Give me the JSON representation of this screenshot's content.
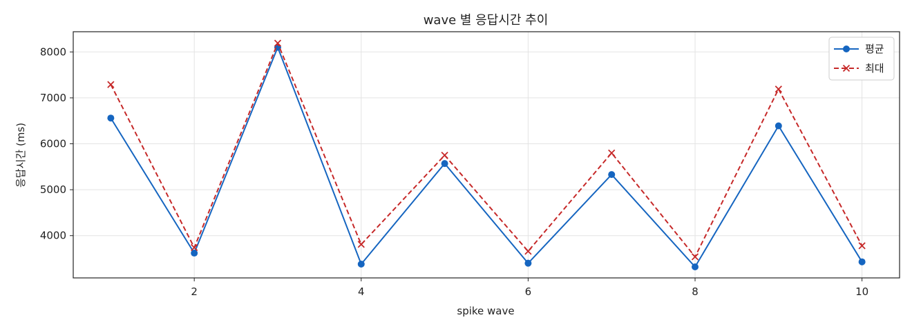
{
  "chart_data": {
    "type": "line",
    "title": "wave 별 응답시간 추이",
    "xlabel": "spike wave",
    "ylabel": "응답시간 (ms)",
    "x": [
      1,
      2,
      3,
      4,
      5,
      6,
      7,
      8,
      9,
      10
    ],
    "xlim": [
      0.55,
      10.45
    ],
    "ylim": [
      3080,
      8440
    ],
    "xticks": [
      2,
      4,
      6,
      8,
      10
    ],
    "yticks": [
      4000,
      5000,
      6000,
      7000,
      8000
    ],
    "grid": true,
    "legend_position": "top-right",
    "series": [
      {
        "name": "평균",
        "values": [
          6560,
          3620,
          8100,
          3380,
          5570,
          3400,
          5330,
          3320,
          6390,
          3430
        ],
        "color": "#1565c0",
        "line_style": "solid",
        "marker": "circle"
      },
      {
        "name": "최대",
        "values": [
          7290,
          3740,
          8190,
          3810,
          5750,
          3660,
          5800,
          3540,
          7190,
          3780
        ],
        "color": "#c62828",
        "line_style": "dashed",
        "marker": "x"
      }
    ]
  }
}
